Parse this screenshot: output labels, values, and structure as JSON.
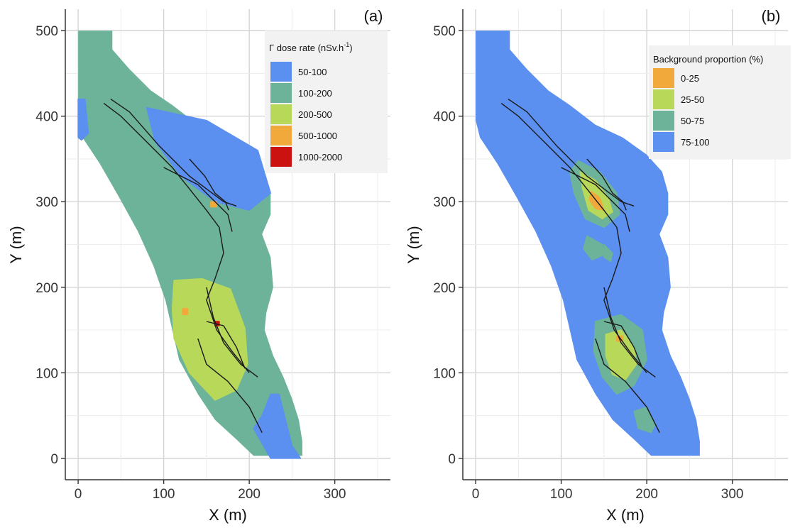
{
  "chart_data": [
    {
      "type": "heatmap",
      "panel_label": "(a)",
      "xlabel": "X (m)",
      "ylabel": "Y (m)",
      "xlim": [
        -15,
        365
      ],
      "ylim": [
        -25,
        525
      ],
      "x_ticks": [
        0,
        100,
        200,
        300
      ],
      "y_ticks": [
        0,
        100,
        200,
        300,
        400,
        500
      ],
      "grid": true,
      "legend": {
        "title": "Γ dose rate (nSv.h",
        "title_sup": "-1",
        "title_end": ")",
        "placement": "top-right",
        "categories": [
          {
            "label": "50-100",
            "color": "#5b8ff0"
          },
          {
            "label": "100-200",
            "color": "#6db39a"
          },
          {
            "label": "200-500",
            "color": "#b8d85a"
          },
          {
            "label": "500-1000",
            "color": "#f2a93b"
          },
          {
            "label": "1000-2000",
            "color": "#cc1111"
          }
        ]
      },
      "base_category": "100-200",
      "zones": [
        {
          "category": "50-100",
          "polygon": [
            [
              80,
              410
            ],
            [
              150,
              395
            ],
            [
              210,
              360
            ],
            [
              225,
              310
            ],
            [
              200,
              290
            ],
            [
              160,
              300
            ],
            [
              120,
              330
            ],
            [
              90,
              370
            ]
          ]
        },
        {
          "category": "50-100",
          "polygon": [
            [
              225,
              75
            ],
            [
              235,
              75
            ],
            [
              250,
              15
            ],
            [
              260,
              0
            ],
            [
              225,
              0
            ],
            [
              205,
              35
            ],
            [
              215,
              50
            ]
          ]
        },
        {
          "category": "50-100",
          "polygon": [
            [
              0,
              420
            ],
            [
              8,
              420
            ],
            [
              12,
              380
            ],
            [
              4,
              372
            ],
            [
              0,
              375
            ]
          ]
        },
        {
          "category": "200-500",
          "polygon": [
            [
              112,
              208
            ],
            [
              145,
              210
            ],
            [
              178,
              198
            ],
            [
              195,
              152
            ],
            [
              198,
              110
            ],
            [
              185,
              80
            ],
            [
              160,
              68
            ],
            [
              130,
              100
            ],
            [
              112,
              140
            ],
            [
              110,
              175
            ]
          ]
        },
        {
          "category": "500-1000",
          "polygon": [
            [
              122,
              175
            ],
            [
              128,
              175
            ],
            [
              128,
              168
            ],
            [
              122,
              168
            ]
          ]
        },
        {
          "category": "500-1000",
          "polygon": [
            [
              155,
              300
            ],
            [
              162,
              300
            ],
            [
              162,
              294
            ],
            [
              155,
              294
            ]
          ]
        },
        {
          "category": "1000-2000",
          "polygon": [
            [
              160,
              160
            ],
            [
              165,
              160
            ],
            [
              165,
              155
            ],
            [
              160,
              155
            ]
          ]
        }
      ],
      "tracks": [
        [
          [
            30,
            415
          ],
          [
            50,
            400
          ],
          [
            80,
            370
          ],
          [
            110,
            340
          ],
          [
            130,
            315
          ],
          [
            150,
            290
          ],
          [
            165,
            270
          ],
          [
            170,
            240
          ],
          [
            160,
            210
          ],
          [
            150,
            185
          ],
          [
            162,
            150
          ],
          [
            180,
            125
          ],
          [
            200,
            100
          ]
        ],
        [
          [
            38,
            420
          ],
          [
            60,
            405
          ],
          [
            95,
            365
          ],
          [
            130,
            330
          ],
          [
            170,
            300
          ],
          [
            185,
            295
          ]
        ],
        [
          [
            100,
            340
          ],
          [
            140,
            320
          ],
          [
            175,
            285
          ],
          [
            180,
            265
          ]
        ],
        [
          [
            150,
            200
          ],
          [
            158,
            165
          ],
          [
            170,
            135
          ],
          [
            190,
            110
          ],
          [
            210,
            95
          ]
        ],
        [
          [
            140,
            140
          ],
          [
            150,
            110
          ],
          [
            175,
            90
          ],
          [
            200,
            60
          ],
          [
            215,
            30
          ]
        ],
        [
          [
            130,
            350
          ],
          [
            148,
            330
          ],
          [
            160,
            310
          ],
          [
            172,
            300
          ],
          [
            176,
            290
          ]
        ],
        [
          [
            150,
            160
          ],
          [
            170,
            155
          ],
          [
            185,
            130
          ],
          [
            195,
            105
          ]
        ]
      ]
    },
    {
      "type": "heatmap",
      "panel_label": "(b)",
      "xlabel": "X (m)",
      "ylabel": "Y (m)",
      "xlim": [
        -15,
        365
      ],
      "ylim": [
        -25,
        525
      ],
      "x_ticks": [
        0,
        100,
        200,
        300
      ],
      "y_ticks": [
        0,
        100,
        200,
        300,
        400,
        500
      ],
      "grid": true,
      "legend": {
        "title": "Background proportion (%)",
        "placement": "top-right",
        "categories": [
          {
            "label": "0-25",
            "color": "#f2a93b"
          },
          {
            "label": "25-50",
            "color": "#b8d85a"
          },
          {
            "label": "50-75",
            "color": "#6db39a"
          },
          {
            "label": "75-100",
            "color": "#5b8ff0"
          }
        ]
      },
      "base_category": "75-100",
      "zones": [
        {
          "category": "50-75",
          "polygon": [
            [
              120,
              348
            ],
            [
              145,
              335
            ],
            [
              165,
              310
            ],
            [
              168,
              285
            ],
            [
              150,
              270
            ],
            [
              128,
              280
            ],
            [
              115,
              310
            ],
            [
              110,
              335
            ]
          ]
        },
        {
          "category": "25-50",
          "polygon": [
            [
              122,
              335
            ],
            [
              140,
              325
            ],
            [
              155,
              305
            ],
            [
              160,
              288
            ],
            [
              148,
              280
            ],
            [
              132,
              290
            ],
            [
              125,
              315
            ]
          ]
        },
        {
          "category": "0-25",
          "polygon": [
            [
              135,
              312
            ],
            [
              145,
              305
            ],
            [
              150,
              290
            ],
            [
              140,
              292
            ],
            [
              133,
              302
            ]
          ]
        },
        {
          "category": "50-75",
          "polygon": [
            [
              150,
              250
            ],
            [
              160,
              240
            ],
            [
              158,
              230
            ],
            [
              150,
              235
            ]
          ]
        },
        {
          "category": "50-75",
          "polygon": [
            [
              130,
              260
            ],
            [
              148,
              250
            ],
            [
              150,
              238
            ],
            [
              136,
              232
            ],
            [
              126,
              245
            ]
          ]
        },
        {
          "category": "50-75",
          "polygon": [
            [
              140,
              160
            ],
            [
              170,
              168
            ],
            [
              195,
              150
            ],
            [
              200,
              115
            ],
            [
              185,
              85
            ],
            [
              165,
              75
            ],
            [
              148,
              95
            ],
            [
              138,
              125
            ]
          ]
        },
        {
          "category": "25-50",
          "polygon": [
            [
              152,
              145
            ],
            [
              170,
              150
            ],
            [
              185,
              130
            ],
            [
              188,
              110
            ],
            [
              175,
              92
            ],
            [
              160,
              98
            ],
            [
              152,
              120
            ]
          ]
        },
        {
          "category": "0-25",
          "polygon": [
            [
              165,
              143
            ],
            [
              172,
              143
            ],
            [
              172,
              137
            ],
            [
              165,
              137
            ]
          ]
        },
        {
          "category": "50-75",
          "polygon": [
            [
              185,
              55
            ],
            [
              200,
              60
            ],
            [
              210,
              40
            ],
            [
              205,
              30
            ],
            [
              190,
              35
            ]
          ]
        }
      ],
      "tracks": [
        [
          [
            30,
            415
          ],
          [
            50,
            400
          ],
          [
            80,
            370
          ],
          [
            110,
            340
          ],
          [
            130,
            315
          ],
          [
            150,
            290
          ],
          [
            165,
            270
          ],
          [
            170,
            240
          ],
          [
            160,
            210
          ],
          [
            150,
            185
          ],
          [
            162,
            150
          ],
          [
            180,
            125
          ],
          [
            200,
            100
          ]
        ],
        [
          [
            38,
            420
          ],
          [
            60,
            405
          ],
          [
            95,
            365
          ],
          [
            130,
            330
          ],
          [
            170,
            300
          ],
          [
            185,
            295
          ]
        ],
        [
          [
            100,
            340
          ],
          [
            140,
            320
          ],
          [
            175,
            285
          ],
          [
            180,
            265
          ]
        ],
        [
          [
            150,
            200
          ],
          [
            158,
            165
          ],
          [
            170,
            135
          ],
          [
            190,
            110
          ],
          [
            210,
            95
          ]
        ],
        [
          [
            140,
            140
          ],
          [
            150,
            110
          ],
          [
            175,
            90
          ],
          [
            200,
            60
          ],
          [
            215,
            30
          ]
        ],
        [
          [
            130,
            350
          ],
          [
            148,
            330
          ],
          [
            160,
            310
          ],
          [
            172,
            300
          ],
          [
            176,
            290
          ]
        ],
        [
          [
            150,
            160
          ],
          [
            170,
            155
          ],
          [
            185,
            130
          ],
          [
            195,
            105
          ]
        ]
      ]
    }
  ],
  "study_area": [
    [
      5,
      500
    ],
    [
      40,
      500
    ],
    [
      40,
      478
    ],
    [
      60,
      455
    ],
    [
      85,
      430
    ],
    [
      110,
      413
    ],
    [
      140,
      390
    ],
    [
      172,
      375
    ],
    [
      200,
      355
    ],
    [
      218,
      335
    ],
    [
      225,
      310
    ],
    [
      225,
      285
    ],
    [
      215,
      262
    ],
    [
      225,
      235
    ],
    [
      228,
      200
    ],
    [
      220,
      170
    ],
    [
      218,
      150
    ],
    [
      228,
      120
    ],
    [
      240,
      95
    ],
    [
      250,
      70
    ],
    [
      258,
      45
    ],
    [
      262,
      20
    ],
    [
      262,
      3
    ],
    [
      205,
      3
    ],
    [
      185,
      22
    ],
    [
      160,
      45
    ],
    [
      140,
      75
    ],
    [
      118,
      115
    ],
    [
      110,
      150
    ],
    [
      102,
      185
    ],
    [
      88,
      225
    ],
    [
      70,
      265
    ],
    [
      48,
      305
    ],
    [
      25,
      345
    ],
    [
      5,
      375
    ],
    [
      0,
      395
    ],
    [
      0,
      500
    ]
  ]
}
